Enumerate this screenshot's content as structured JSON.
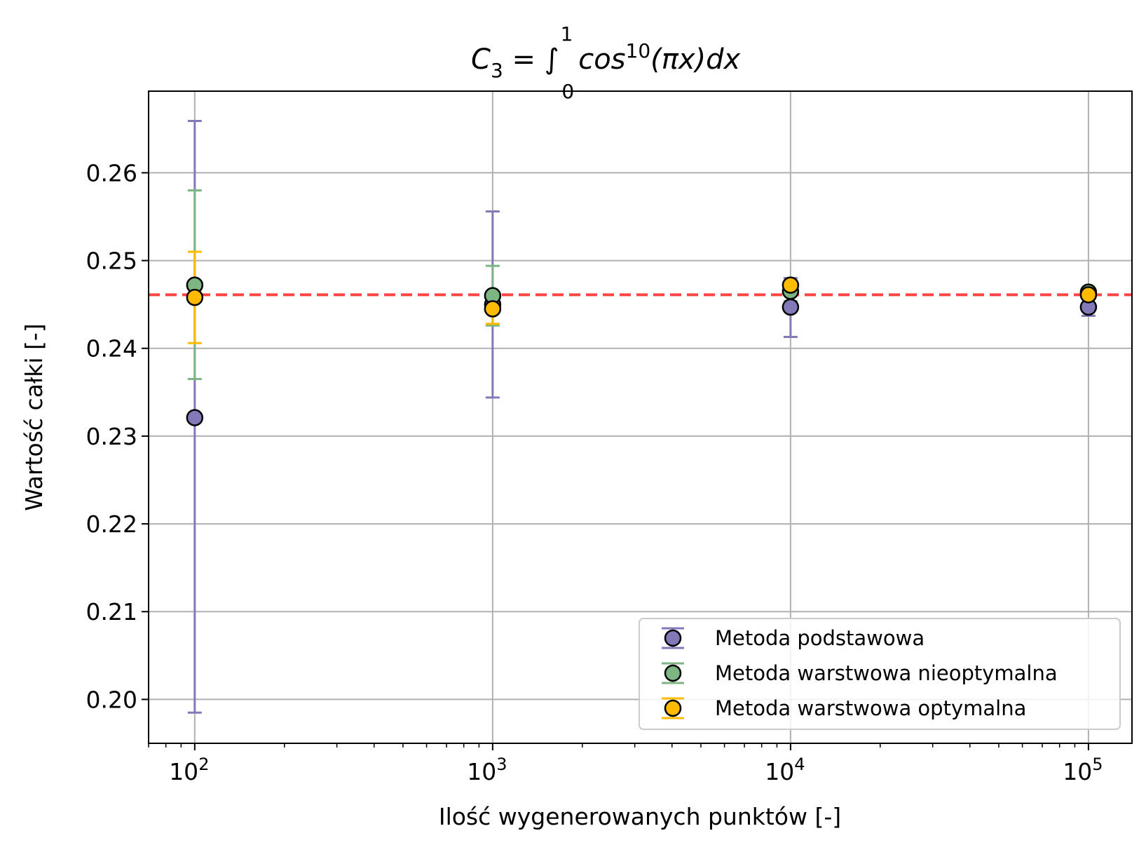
{
  "chart_data": {
    "type": "scatter",
    "title": {
      "base": "C",
      "sub": "3",
      "eq": " = ∫",
      "upper": "1",
      "lower": "0",
      "func": "cos",
      "power": "10",
      "arg": "(πx)dx"
    },
    "xlabel": "Ilość wygenerowanych punktów [-]",
    "ylabel": "Wartość całki [-]",
    "x_scale": "log",
    "xlim": [
      70,
      140000
    ],
    "ylim": [
      0.195,
      0.2693
    ],
    "x_ticks": [
      {
        "value": 100,
        "base": "10",
        "exp": "2"
      },
      {
        "value": 1000,
        "base": "10",
        "exp": "3"
      },
      {
        "value": 10000,
        "base": "10",
        "exp": "4"
      },
      {
        "value": 100000,
        "base": "10",
        "exp": "5"
      }
    ],
    "y_ticks": [
      {
        "value": 0.2,
        "label": "0.20"
      },
      {
        "value": 0.21,
        "label": "0.21"
      },
      {
        "value": 0.22,
        "label": "0.22"
      },
      {
        "value": 0.23,
        "label": "0.23"
      },
      {
        "value": 0.24,
        "label": "0.24"
      },
      {
        "value": 0.25,
        "label": "0.25"
      },
      {
        "value": 0.26,
        "label": "0.26"
      }
    ],
    "grid": true,
    "reference_line": {
      "y": 0.2461,
      "color": "#ff4444",
      "style": "dashed"
    },
    "series": [
      {
        "name": "Metoda podstawowa",
        "color": "#8179b8",
        "points": [
          {
            "x": 100,
            "y": 0.2321,
            "err_low": 0.1985,
            "err_high": 0.2659
          },
          {
            "x": 1000,
            "y": 0.245,
            "err_low": 0.2344,
            "err_high": 0.2556
          },
          {
            "x": 10000,
            "y": 0.2447,
            "err_low": 0.2413,
            "err_high": 0.248
          },
          {
            "x": 100000,
            "y": 0.2447,
            "err_low": 0.2437,
            "err_high": 0.2458
          }
        ]
      },
      {
        "name": "Metoda warstwowa nieoptymalna",
        "color": "#7db583",
        "points": [
          {
            "x": 100,
            "y": 0.2472,
            "err_low": 0.2365,
            "err_high": 0.258
          },
          {
            "x": 1000,
            "y": 0.246,
            "err_low": 0.2426,
            "err_high": 0.2494
          },
          {
            "x": 10000,
            "y": 0.2465,
            "err_low": 0.2454,
            "err_high": 0.2476
          },
          {
            "x": 100000,
            "y": 0.2464,
            "err_low": 0.2461,
            "err_high": 0.2467
          }
        ]
      },
      {
        "name": "Metoda warstwowa optymalna",
        "color": "#ffbb00",
        "points": [
          {
            "x": 100,
            "y": 0.2458,
            "err_low": 0.2406,
            "err_high": 0.251
          },
          {
            "x": 1000,
            "y": 0.2445,
            "err_low": 0.2428,
            "err_high": 0.2462
          },
          {
            "x": 10000,
            "y": 0.2472,
            "err_low": 0.2467,
            "err_high": 0.2477
          },
          {
            "x": 100000,
            "y": 0.2461,
            "err_low": 0.246,
            "err_high": 0.2463
          }
        ]
      }
    ],
    "legend": {
      "position": "lower-right"
    }
  }
}
